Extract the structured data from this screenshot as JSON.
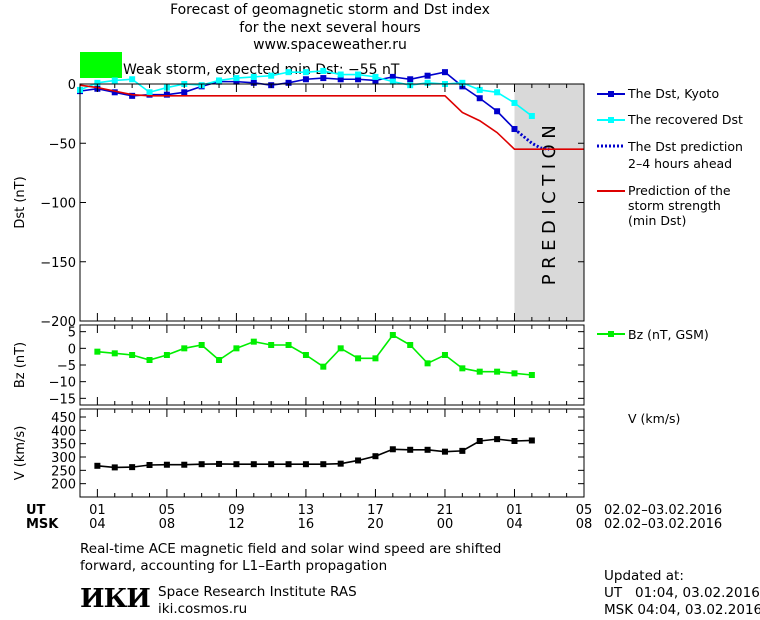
{
  "header": {
    "title_line1": "Forecast of geomagnetic storm and Dst index",
    "title_line2": "for the next several hours",
    "url": "www.spaceweather.ru"
  },
  "storm": {
    "label": "Weak storm, expected min Dst: −55 nT",
    "color": "#00ff00"
  },
  "legend": {
    "dst_kyoto": "The Dst, Kyoto",
    "dst_recovered": "The recovered Dst",
    "dst_prediction_1": "The Dst prediction",
    "dst_prediction_2": "2–4 hours ahead",
    "storm_strength_1": "Prediction of the",
    "storm_strength_2": "storm strength",
    "storm_strength_3": "(min Dst)",
    "bz": "Bz (nT, GSM)",
    "v": "V (km/s)"
  },
  "time_axis": {
    "ut_label": "UT",
    "msk_label": "MSK",
    "ut_ticks": [
      "01",
      "05",
      "09",
      "13",
      "17",
      "21",
      "01",
      "05"
    ],
    "msk_ticks": [
      "04",
      "08",
      "12",
      "16",
      "20",
      "00",
      "04",
      "08"
    ],
    "ut_range": "02.02–03.02.2016",
    "msk_range": "02.02–03.02.2016"
  },
  "prediction_label": "PREDICTION",
  "footer": {
    "note_line1": "Real-time ACE magnetic field and solar wind speed are shifted",
    "note_line2": "forward, accounting for L1–Earth propagation",
    "institute": "Space Research Institute RAS",
    "site": "iki.cosmos.ru",
    "logo_text": "ИКИ",
    "updated_label": "Updated at:",
    "updated_ut": "UT   01:04, 03.02.2016",
    "updated_msk": "MSK 04:04, 03.02.2016"
  },
  "colors": {
    "dst_kyoto": "#0000cc",
    "dst_recovered": "#00ffff",
    "prediction": "#0000cc",
    "storm_line": "#dd0000",
    "bz": "#00ee00",
    "v": "#000000",
    "prediction_band": "#d9d9d9"
  },
  "chart_data": [
    {
      "type": "line",
      "ylabel": "Dst (nT)",
      "ylim": [
        -200,
        0
      ],
      "yticks": [
        0,
        -50,
        -100,
        -150,
        -200
      ],
      "x_unit": "hours UT since 02.02.2016 00:00",
      "xlim": [
        0,
        29
      ],
      "prediction_band": [
        25,
        29
      ],
      "series": [
        {
          "name": "The Dst, Kyoto",
          "x": [
            0,
            1,
            2,
            3,
            4,
            5,
            6,
            7,
            8,
            9,
            10,
            11,
            12,
            13,
            14,
            15,
            16,
            17,
            18,
            19,
            20,
            21,
            22,
            23,
            24,
            25
          ],
          "y": [
            -6,
            -4,
            -7,
            -10,
            -9,
            -9,
            -7,
            -2,
            2,
            2,
            1,
            -1,
            1,
            4,
            5,
            4,
            4,
            3,
            6,
            4,
            7,
            10,
            -2,
            -12,
            -23,
            -38
          ]
        },
        {
          "name": "The recovered Dst",
          "x": [
            0,
            1,
            2,
            3,
            4,
            5,
            6,
            7,
            8,
            9,
            10,
            11,
            12,
            13,
            14,
            15,
            16,
            17,
            18,
            19,
            20,
            21,
            22,
            23,
            24,
            25,
            26
          ],
          "y": [
            -5,
            1,
            3,
            4,
            -7,
            -3,
            0,
            -1,
            3,
            5,
            6,
            7,
            10,
            10,
            11,
            8,
            8,
            6,
            2,
            -1,
            1,
            0,
            1,
            -5,
            -7,
            -16,
            -27
          ]
        },
        {
          "name": "The Dst prediction 2–4 hours ahead",
          "x": [
            25,
            26,
            26.5,
            27
          ],
          "y": [
            -38,
            -50,
            -54,
            -55
          ]
        },
        {
          "name": "Prediction of the storm strength (min Dst)",
          "x": [
            0,
            1,
            2,
            3,
            4,
            21,
            22,
            23,
            24,
            25,
            29
          ],
          "y": [
            -1,
            -3,
            -6,
            -9,
            -10,
            -10,
            -24,
            -31,
            -41,
            -55,
            -55
          ]
        }
      ]
    },
    {
      "type": "line",
      "ylabel": "Bz (nT)",
      "ylim": [
        -17,
        7
      ],
      "yticks": [
        5,
        0,
        -5,
        -10,
        -15
      ],
      "series": [
        {
          "name": "Bz (nT, GSM)",
          "x": [
            1,
            2,
            3,
            4,
            5,
            6,
            7,
            8,
            9,
            10,
            11,
            12,
            13,
            14,
            15,
            16,
            17,
            18,
            19,
            20,
            21,
            22,
            23,
            24,
            25,
            26
          ],
          "y": [
            -1,
            -1.5,
            -2,
            -3.5,
            -2,
            0,
            1,
            -3.5,
            0,
            2,
            1,
            1,
            -2,
            -5.5,
            0,
            -3,
            -3,
            4,
            1,
            -4.5,
            -2,
            -6,
            -7,
            -7,
            -7.5,
            -8
          ]
        }
      ]
    },
    {
      "type": "line",
      "ylabel": "V (km/s)",
      "ylim": [
        150,
        480
      ],
      "yticks": [
        450,
        400,
        350,
        300,
        250,
        200
      ],
      "series": [
        {
          "name": "V (km/s)",
          "x": [
            1,
            2,
            3,
            4,
            5,
            6,
            7,
            8,
            9,
            10,
            11,
            12,
            13,
            14,
            15,
            16,
            17,
            18,
            19,
            20,
            21,
            22,
            23,
            24,
            25,
            26
          ],
          "y": [
            267,
            261,
            262,
            270,
            271,
            271,
            273,
            274,
            273,
            273,
            273,
            273,
            273,
            273,
            275,
            287,
            303,
            329,
            327,
            327,
            320,
            323,
            360,
            367,
            360,
            362
          ]
        }
      ]
    }
  ]
}
